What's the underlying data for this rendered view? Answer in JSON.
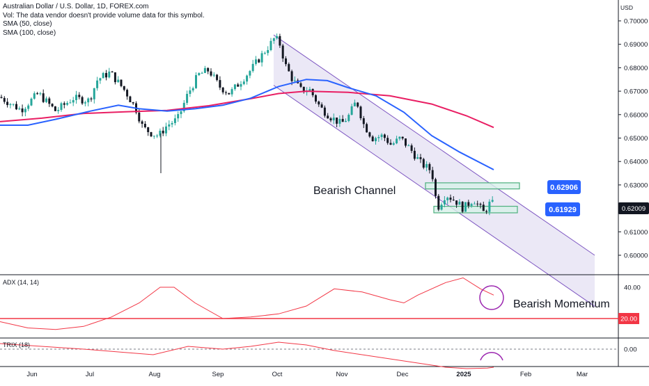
{
  "legend": {
    "title": "Australian Dollar / U.S. Dollar, 1D, FOREX.com",
    "vol_note": "Vol: The data vendor doesn't provide volume data for this symbol.",
    "sma50": "SMA (50, close)",
    "sma100": "SMA (100, close)"
  },
  "currency": "USD",
  "panels": {
    "adx_label": "ADX (14, 14)",
    "trix_label": "TRIX (18)"
  },
  "annotations": {
    "channel": "Bearish Channel",
    "momentum": "Bearish Momentum"
  },
  "price_tags": {
    "upper_box": "0.62906",
    "lower_box": "0.61929",
    "last": "0.62009"
  },
  "colors": {
    "up": "#26a69a",
    "down": "#131722",
    "sma50": "#2962ff",
    "sma100": "#e91e63",
    "indicator": "#f23645",
    "channel_fill": "#e8e4f5",
    "channel_line": "#7e57c2",
    "box_fill": "#d7f0e8",
    "box_line": "#4caf7d",
    "tag_blue": "#2962ff",
    "tag_dark": "#131722"
  },
  "chart_data": {
    "type": "candlestick",
    "x_labels": [
      "Jun",
      "Jul",
      "Aug",
      "Sep",
      "Oct",
      "Nov",
      "Dec",
      "2025",
      "Feb",
      "Mar"
    ],
    "y_ticks": [
      "0.70000",
      "0.69000",
      "0.68000",
      "0.67000",
      "0.66000",
      "0.65000",
      "0.64000",
      "0.63000",
      "0.62000",
      "0.61000",
      "0.60000"
    ],
    "ylim": [
      0.5972,
      0.7024
    ],
    "price_anchors": [
      {
        "x": 0,
        "y": 0.6675
      },
      {
        "x": 30,
        "y": 0.662
      },
      {
        "x": 55,
        "y": 0.669
      },
      {
        "x": 80,
        "y": 0.6615
      },
      {
        "x": 105,
        "y": 0.667
      },
      {
        "x": 128,
        "y": 0.666
      },
      {
        "x": 140,
        "y": 0.675
      },
      {
        "x": 158,
        "y": 0.678
      },
      {
        "x": 180,
        "y": 0.67
      },
      {
        "x": 196,
        "y": 0.662
      },
      {
        "x": 205,
        "y": 0.6545
      },
      {
        "x": 218,
        "y": 0.652
      },
      {
        "x": 228,
        "y": 0.651
      },
      {
        "x": 240,
        "y": 0.6555
      },
      {
        "x": 255,
        "y": 0.658
      },
      {
        "x": 270,
        "y": 0.669
      },
      {
        "x": 285,
        "y": 0.677
      },
      {
        "x": 300,
        "y": 0.679
      },
      {
        "x": 315,
        "y": 0.672
      },
      {
        "x": 330,
        "y": 0.669
      },
      {
        "x": 345,
        "y": 0.674
      },
      {
        "x": 360,
        "y": 0.679
      },
      {
        "x": 375,
        "y": 0.685
      },
      {
        "x": 388,
        "y": 0.69
      },
      {
        "x": 395,
        "y": 0.693
      },
      {
        "x": 402,
        "y": 0.69
      },
      {
        "x": 410,
        "y": 0.681
      },
      {
        "x": 420,
        "y": 0.675
      },
      {
        "x": 432,
        "y": 0.6705
      },
      {
        "x": 445,
        "y": 0.6705
      },
      {
        "x": 460,
        "y": 0.663
      },
      {
        "x": 475,
        "y": 0.659
      },
      {
        "x": 490,
        "y": 0.656
      },
      {
        "x": 500,
        "y": 0.659
      },
      {
        "x": 512,
        "y": 0.666
      },
      {
        "x": 522,
        "y": 0.656
      },
      {
        "x": 535,
        "y": 0.65
      },
      {
        "x": 550,
        "y": 0.651
      },
      {
        "x": 562,
        "y": 0.647
      },
      {
        "x": 575,
        "y": 0.65
      },
      {
        "x": 590,
        "y": 0.645
      },
      {
        "x": 605,
        "y": 0.639
      },
      {
        "x": 620,
        "y": 0.636
      },
      {
        "x": 628,
        "y": 0.62
      },
      {
        "x": 640,
        "y": 0.626
      },
      {
        "x": 655,
        "y": 0.623
      },
      {
        "x": 665,
        "y": 0.62
      },
      {
        "x": 680,
        "y": 0.624
      },
      {
        "x": 695,
        "y": 0.618
      },
      {
        "x": 705,
        "y": 0.623
      },
      {
        "x": 711,
        "y": 0.6201
      }
    ],
    "sma50": [
      {
        "x": 0,
        "y": 0.6555
      },
      {
        "x": 40,
        "y": 0.6555
      },
      {
        "x": 80,
        "y": 0.658
      },
      {
        "x": 130,
        "y": 0.6615
      },
      {
        "x": 170,
        "y": 0.664
      },
      {
        "x": 200,
        "y": 0.6625
      },
      {
        "x": 240,
        "y": 0.6615
      },
      {
        "x": 280,
        "y": 0.6625
      },
      {
        "x": 320,
        "y": 0.664
      },
      {
        "x": 360,
        "y": 0.667
      },
      {
        "x": 400,
        "y": 0.672
      },
      {
        "x": 440,
        "y": 0.675
      },
      {
        "x": 470,
        "y": 0.6745
      },
      {
        "x": 500,
        "y": 0.6715
      },
      {
        "x": 540,
        "y": 0.668
      },
      {
        "x": 580,
        "y": 0.661
      },
      {
        "x": 620,
        "y": 0.651
      },
      {
        "x": 660,
        "y": 0.644
      },
      {
        "x": 709,
        "y": 0.6365
      }
    ],
    "sma100": [
      {
        "x": 0,
        "y": 0.657
      },
      {
        "x": 60,
        "y": 0.6585
      },
      {
        "x": 120,
        "y": 0.6605
      },
      {
        "x": 180,
        "y": 0.6612
      },
      {
        "x": 240,
        "y": 0.6618
      },
      {
        "x": 300,
        "y": 0.6638
      },
      {
        "x": 360,
        "y": 0.6668
      },
      {
        "x": 400,
        "y": 0.669
      },
      {
        "x": 440,
        "y": 0.67
      },
      {
        "x": 500,
        "y": 0.6695
      },
      {
        "x": 560,
        "y": 0.668
      },
      {
        "x": 620,
        "y": 0.6645
      },
      {
        "x": 670,
        "y": 0.6595
      },
      {
        "x": 709,
        "y": 0.6545
      }
    ],
    "channel": {
      "upper": [
        {
          "x": 393,
          "y": 0.694
        },
        {
          "x": 854,
          "y": 0.6
        }
      ],
      "lower": [
        {
          "x": 393,
          "y": 0.6725
        },
        {
          "x": 854,
          "y": 0.5782
        }
      ]
    },
    "boxes": [
      {
        "x0": 611,
        "x1": 746,
        "y_top": 0.6303,
        "y_bottom": 0.6289
      },
      {
        "x0": 623,
        "x1": 743,
        "y_top": 0.6203,
        "y_bottom": 0.6187
      }
    ],
    "adx": {
      "ticks": [
        "40.00",
        "20.00"
      ],
      "ylim": [
        8,
        50
      ],
      "values": [
        {
          "x": 0,
          "y": 18
        },
        {
          "x": 40,
          "y": 14
        },
        {
          "x": 80,
          "y": 13
        },
        {
          "x": 120,
          "y": 15
        },
        {
          "x": 160,
          "y": 21
        },
        {
          "x": 200,
          "y": 30
        },
        {
          "x": 230,
          "y": 40
        },
        {
          "x": 250,
          "y": 40
        },
        {
          "x": 280,
          "y": 30
        },
        {
          "x": 320,
          "y": 20
        },
        {
          "x": 360,
          "y": 21
        },
        {
          "x": 400,
          "y": 23
        },
        {
          "x": 440,
          "y": 28
        },
        {
          "x": 480,
          "y": 39
        },
        {
          "x": 520,
          "y": 37
        },
        {
          "x": 560,
          "y": 32
        },
        {
          "x": 580,
          "y": 30
        },
        {
          "x": 600,
          "y": 35
        },
        {
          "x": 640,
          "y": 43
        },
        {
          "x": 665,
          "y": 46
        },
        {
          "x": 690,
          "y": 39
        },
        {
          "x": 709,
          "y": 35
        }
      ],
      "threshold": 20
    },
    "trix": {
      "ticks": [
        "0.00"
      ],
      "ylim": [
        -0.09,
        0.04
      ],
      "values": [
        {
          "x": 0,
          "y": 0.02
        },
        {
          "x": 60,
          "y": 0.01
        },
        {
          "x": 120,
          "y": 0.0
        },
        {
          "x": 170,
          "y": -0.01
        },
        {
          "x": 220,
          "y": -0.02
        },
        {
          "x": 270,
          "y": 0.01
        },
        {
          "x": 320,
          "y": 0.0
        },
        {
          "x": 360,
          "y": 0.01
        },
        {
          "x": 400,
          "y": 0.025
        },
        {
          "x": 440,
          "y": 0.015
        },
        {
          "x": 480,
          "y": -0.005
        },
        {
          "x": 520,
          "y": -0.02
        },
        {
          "x": 560,
          "y": -0.035
        },
        {
          "x": 600,
          "y": -0.05
        },
        {
          "x": 640,
          "y": -0.065
        },
        {
          "x": 670,
          "y": -0.07
        },
        {
          "x": 700,
          "y": -0.068
        },
        {
          "x": 709,
          "y": -0.065
        }
      ]
    }
  }
}
